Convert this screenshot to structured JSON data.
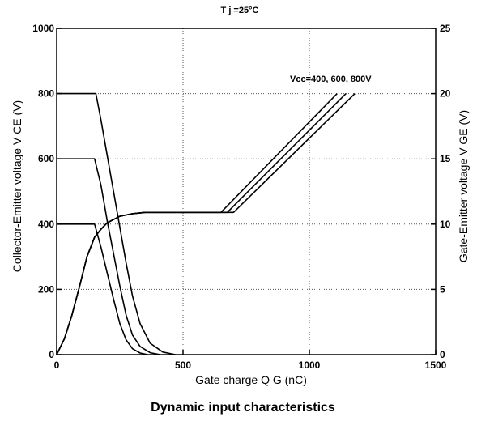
{
  "chart_data": {
    "type": "line",
    "title": "Dynamic input characteristics",
    "condition": "T j =25°C",
    "xlabel": "Gate charge   Q G (nC)",
    "ylabel_left": "Collector-Emitter voltage   V CE (V)",
    "ylabel_right": "Gate-Emitter voltage   V GE (V)",
    "annotation": "Vcc=400, 600, 800V",
    "xlim": [
      0,
      1500
    ],
    "ylim_left": [
      0,
      1000
    ],
    "ylim_right": [
      0,
      25
    ],
    "x_ticks": [
      "0",
      "500",
      "1000",
      "1500"
    ],
    "y_left_ticks": [
      "0",
      "200",
      "400",
      "600",
      "800",
      "1000"
    ],
    "y_right_ticks": [
      "0",
      "5",
      "10",
      "15",
      "20",
      "25"
    ],
    "grid": true,
    "series_vce": [
      {
        "vcc": 400,
        "points": [
          [
            0,
            400
          ],
          [
            150,
            400
          ],
          [
            175,
            330
          ],
          [
            200,
            250
          ],
          [
            225,
            170
          ],
          [
            250,
            95
          ],
          [
            275,
            45
          ],
          [
            300,
            18
          ],
          [
            330,
            5
          ],
          [
            360,
            0
          ]
        ]
      },
      {
        "vcc": 600,
        "points": [
          [
            0,
            600
          ],
          [
            150,
            600
          ],
          [
            175,
            520
          ],
          [
            200,
            410
          ],
          [
            225,
            310
          ],
          [
            250,
            210
          ],
          [
            275,
            120
          ],
          [
            300,
            60
          ],
          [
            330,
            25
          ],
          [
            370,
            6
          ],
          [
            410,
            0
          ]
        ]
      },
      {
        "vcc": 800,
        "points": [
          [
            0,
            800
          ],
          [
            155,
            800
          ],
          [
            175,
            720
          ],
          [
            200,
            610
          ],
          [
            225,
            500
          ],
          [
            250,
            390
          ],
          [
            275,
            280
          ],
          [
            300,
            180
          ],
          [
            330,
            95
          ],
          [
            370,
            35
          ],
          [
            420,
            8
          ],
          [
            470,
            0
          ]
        ]
      }
    ],
    "series_vge": [
      {
        "points": [
          [
            0,
            0
          ],
          [
            30,
            1.2
          ],
          [
            60,
            3
          ],
          [
            90,
            5.2
          ],
          [
            120,
            7.5
          ],
          [
            150,
            9
          ],
          [
            175,
            9.6
          ],
          [
            200,
            10.1
          ],
          [
            250,
            10.6
          ],
          [
            300,
            10.8
          ],
          [
            350,
            10.9
          ],
          [
            650,
            10.9
          ],
          [
            1110,
            20
          ]
        ]
      },
      {
        "points": [
          [
            0,
            0
          ],
          [
            30,
            1.2
          ],
          [
            60,
            3
          ],
          [
            90,
            5.2
          ],
          [
            120,
            7.5
          ],
          [
            150,
            9
          ],
          [
            175,
            9.6
          ],
          [
            200,
            10.1
          ],
          [
            250,
            10.6
          ],
          [
            300,
            10.8
          ],
          [
            350,
            10.9
          ],
          [
            675,
            10.9
          ],
          [
            1145,
            20
          ]
        ]
      },
      {
        "points": [
          [
            0,
            0
          ],
          [
            30,
            1.2
          ],
          [
            60,
            3
          ],
          [
            90,
            5.2
          ],
          [
            120,
            7.5
          ],
          [
            150,
            9
          ],
          [
            175,
            9.6
          ],
          [
            200,
            10.1
          ],
          [
            250,
            10.6
          ],
          [
            300,
            10.8
          ],
          [
            350,
            10.9
          ],
          [
            700,
            10.9
          ],
          [
            1180,
            20
          ]
        ]
      }
    ]
  }
}
